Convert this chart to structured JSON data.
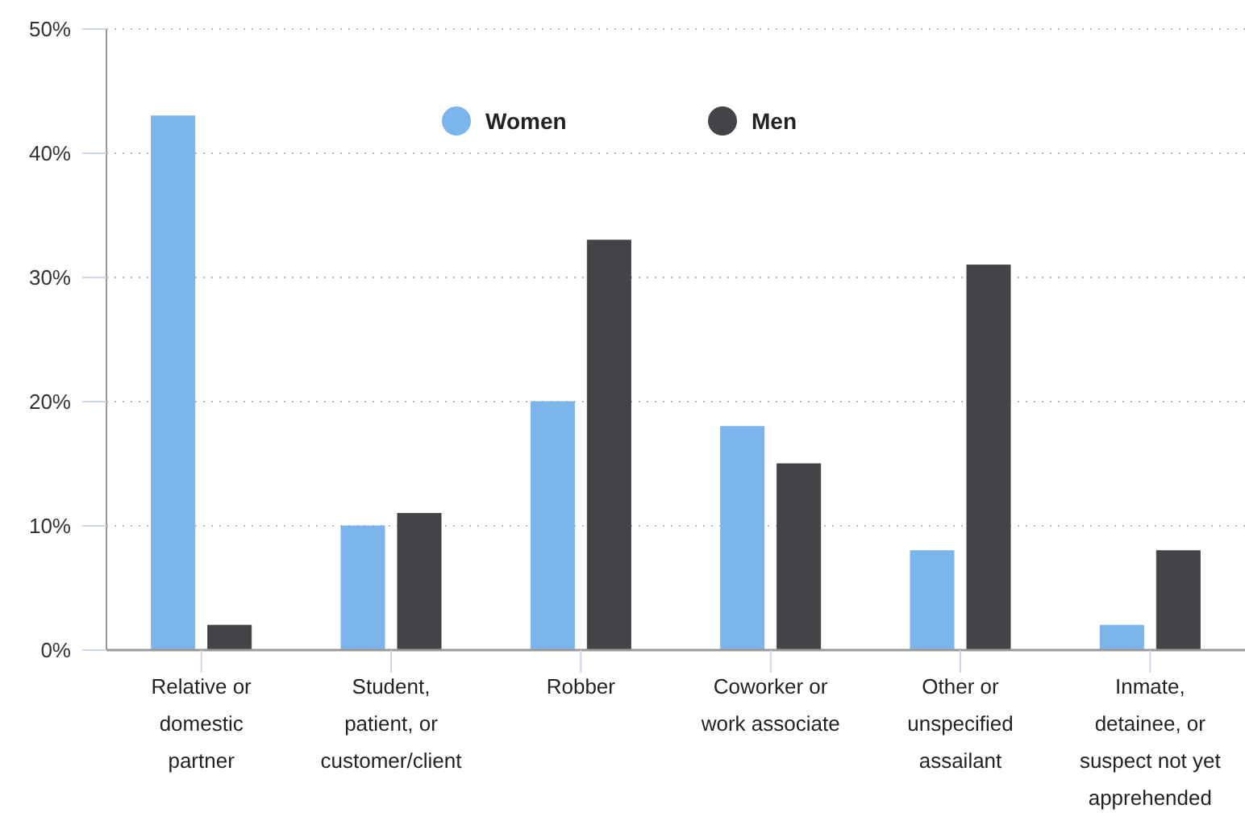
{
  "chart_data": {
    "type": "bar",
    "categories": [
      "Relative or domestic partner",
      "Student, patient, or customer/client",
      "Robber",
      "Coworker or work associate",
      "Other or unspecified assailant",
      "Inmate, detainee, or suspect not yet apprehended"
    ],
    "series": [
      {
        "name": "Women",
        "color": "#7cb5ec",
        "values": [
          43,
          10,
          20,
          18,
          8,
          2
        ]
      },
      {
        "name": "Men",
        "color": "#434348",
        "values": [
          2,
          11,
          33,
          15,
          31,
          8
        ]
      }
    ],
    "ylim": [
      0,
      50
    ],
    "yticks": [
      {
        "value": 0,
        "label": "0%"
      },
      {
        "value": 10,
        "label": "10%"
      },
      {
        "value": 20,
        "label": "20%"
      },
      {
        "value": 30,
        "label": "30%"
      },
      {
        "value": 40,
        "label": "40%"
      },
      {
        "value": 50,
        "label": "50%"
      }
    ],
    "grid": "y",
    "legend": "top"
  }
}
